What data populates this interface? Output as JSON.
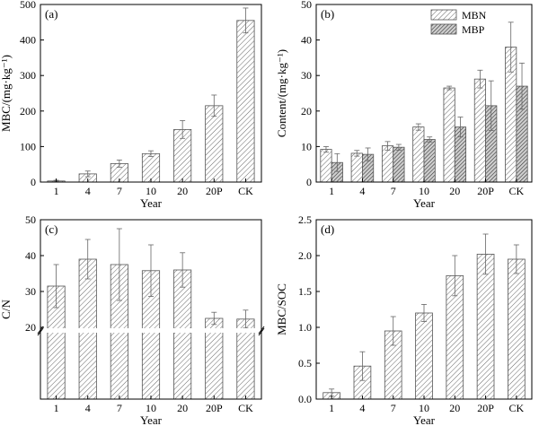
{
  "chart_data": [
    {
      "panel": "(a)",
      "type": "bar",
      "categories": [
        "1",
        "4",
        "7",
        "10",
        "20",
        "20P",
        "CK"
      ],
      "values": [
        3,
        23,
        52,
        80,
        148,
        215,
        455
      ],
      "errors": [
        2,
        8,
        10,
        8,
        25,
        30,
        35
      ],
      "xlabel": "Year",
      "ylabel": "MBC/(mg·kg⁻¹)",
      "ylim": [
        0,
        500
      ],
      "yticks": [
        0,
        100,
        200,
        300,
        400,
        500
      ]
    },
    {
      "panel": "(b)",
      "type": "bar",
      "categories": [
        "1",
        "4",
        "7",
        "10",
        "20",
        "20P",
        "CK"
      ],
      "series": [
        {
          "name": "MBN",
          "values": [
            9.2,
            8.1,
            10.2,
            15.5,
            26.5,
            29.0,
            38.0
          ],
          "errors": [
            0.8,
            0.8,
            1.2,
            0.9,
            0.5,
            2.5,
            7.0
          ],
          "pattern": "light-hatch"
        },
        {
          "name": "MBP",
          "values": [
            5.5,
            7.8,
            9.8,
            12.0,
            15.5,
            21.5,
            27.0
          ],
          "errors": [
            2.5,
            1.8,
            0.8,
            0.7,
            2.8,
            7.0,
            6.5
          ],
          "pattern": "dense-hatch"
        }
      ],
      "xlabel": "Year",
      "ylabel": "Content/(mg·kg⁻¹)",
      "ylim": [
        0,
        50
      ],
      "yticks": [
        0,
        10,
        20,
        30,
        40,
        50
      ],
      "legend": "top-right"
    },
    {
      "panel": "(c)",
      "type": "bar",
      "categories": [
        "1",
        "4",
        "7",
        "10",
        "20",
        "20P",
        "CK"
      ],
      "values": [
        31.5,
        39.0,
        37.5,
        35.8,
        36.0,
        22.5,
        22.3
      ],
      "errors": [
        6.0,
        5.5,
        10.0,
        7.2,
        4.8,
        1.7,
        2.5
      ],
      "xlabel": "Year",
      "ylabel": "C/N",
      "ylim": [
        0,
        50
      ],
      "broken_axis": [
        0,
        20
      ],
      "yticks": [
        20,
        30,
        40,
        50
      ]
    },
    {
      "panel": "(d)",
      "type": "bar",
      "categories": [
        "1",
        "4",
        "7",
        "10",
        "20",
        "20P",
        "CK"
      ],
      "values": [
        0.09,
        0.46,
        0.95,
        1.2,
        1.72,
        2.02,
        1.95
      ],
      "errors": [
        0.05,
        0.2,
        0.2,
        0.12,
        0.28,
        0.28,
        0.2
      ],
      "xlabel": "Year",
      "ylabel": "MBC/SOC",
      "ylim": [
        0,
        2.5
      ],
      "yticks": [
        0,
        0.5,
        1.0,
        1.5,
        2.0,
        2.5
      ]
    }
  ]
}
